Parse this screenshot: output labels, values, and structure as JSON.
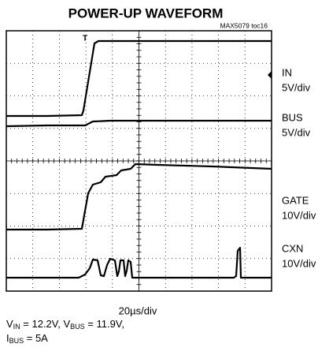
{
  "title": "POWER-UP WAVEFORM",
  "note": "MAX5079 toc16",
  "channels": [
    {
      "name": "IN",
      "scale": "5V/div"
    },
    {
      "name": "BUS",
      "scale": "5V/div"
    },
    {
      "name": "GATE",
      "scale": "10V/div"
    },
    {
      "name": "CXN",
      "scale": "10V/div"
    }
  ],
  "timebase": "20µs/div",
  "trigger": "T",
  "conditions": {
    "line1": [
      "V",
      "IN",
      " = 12.2V, V",
      "BUS",
      " = 11.9V,"
    ],
    "line2": [
      "I",
      "BUS",
      " = 5A"
    ]
  }
}
